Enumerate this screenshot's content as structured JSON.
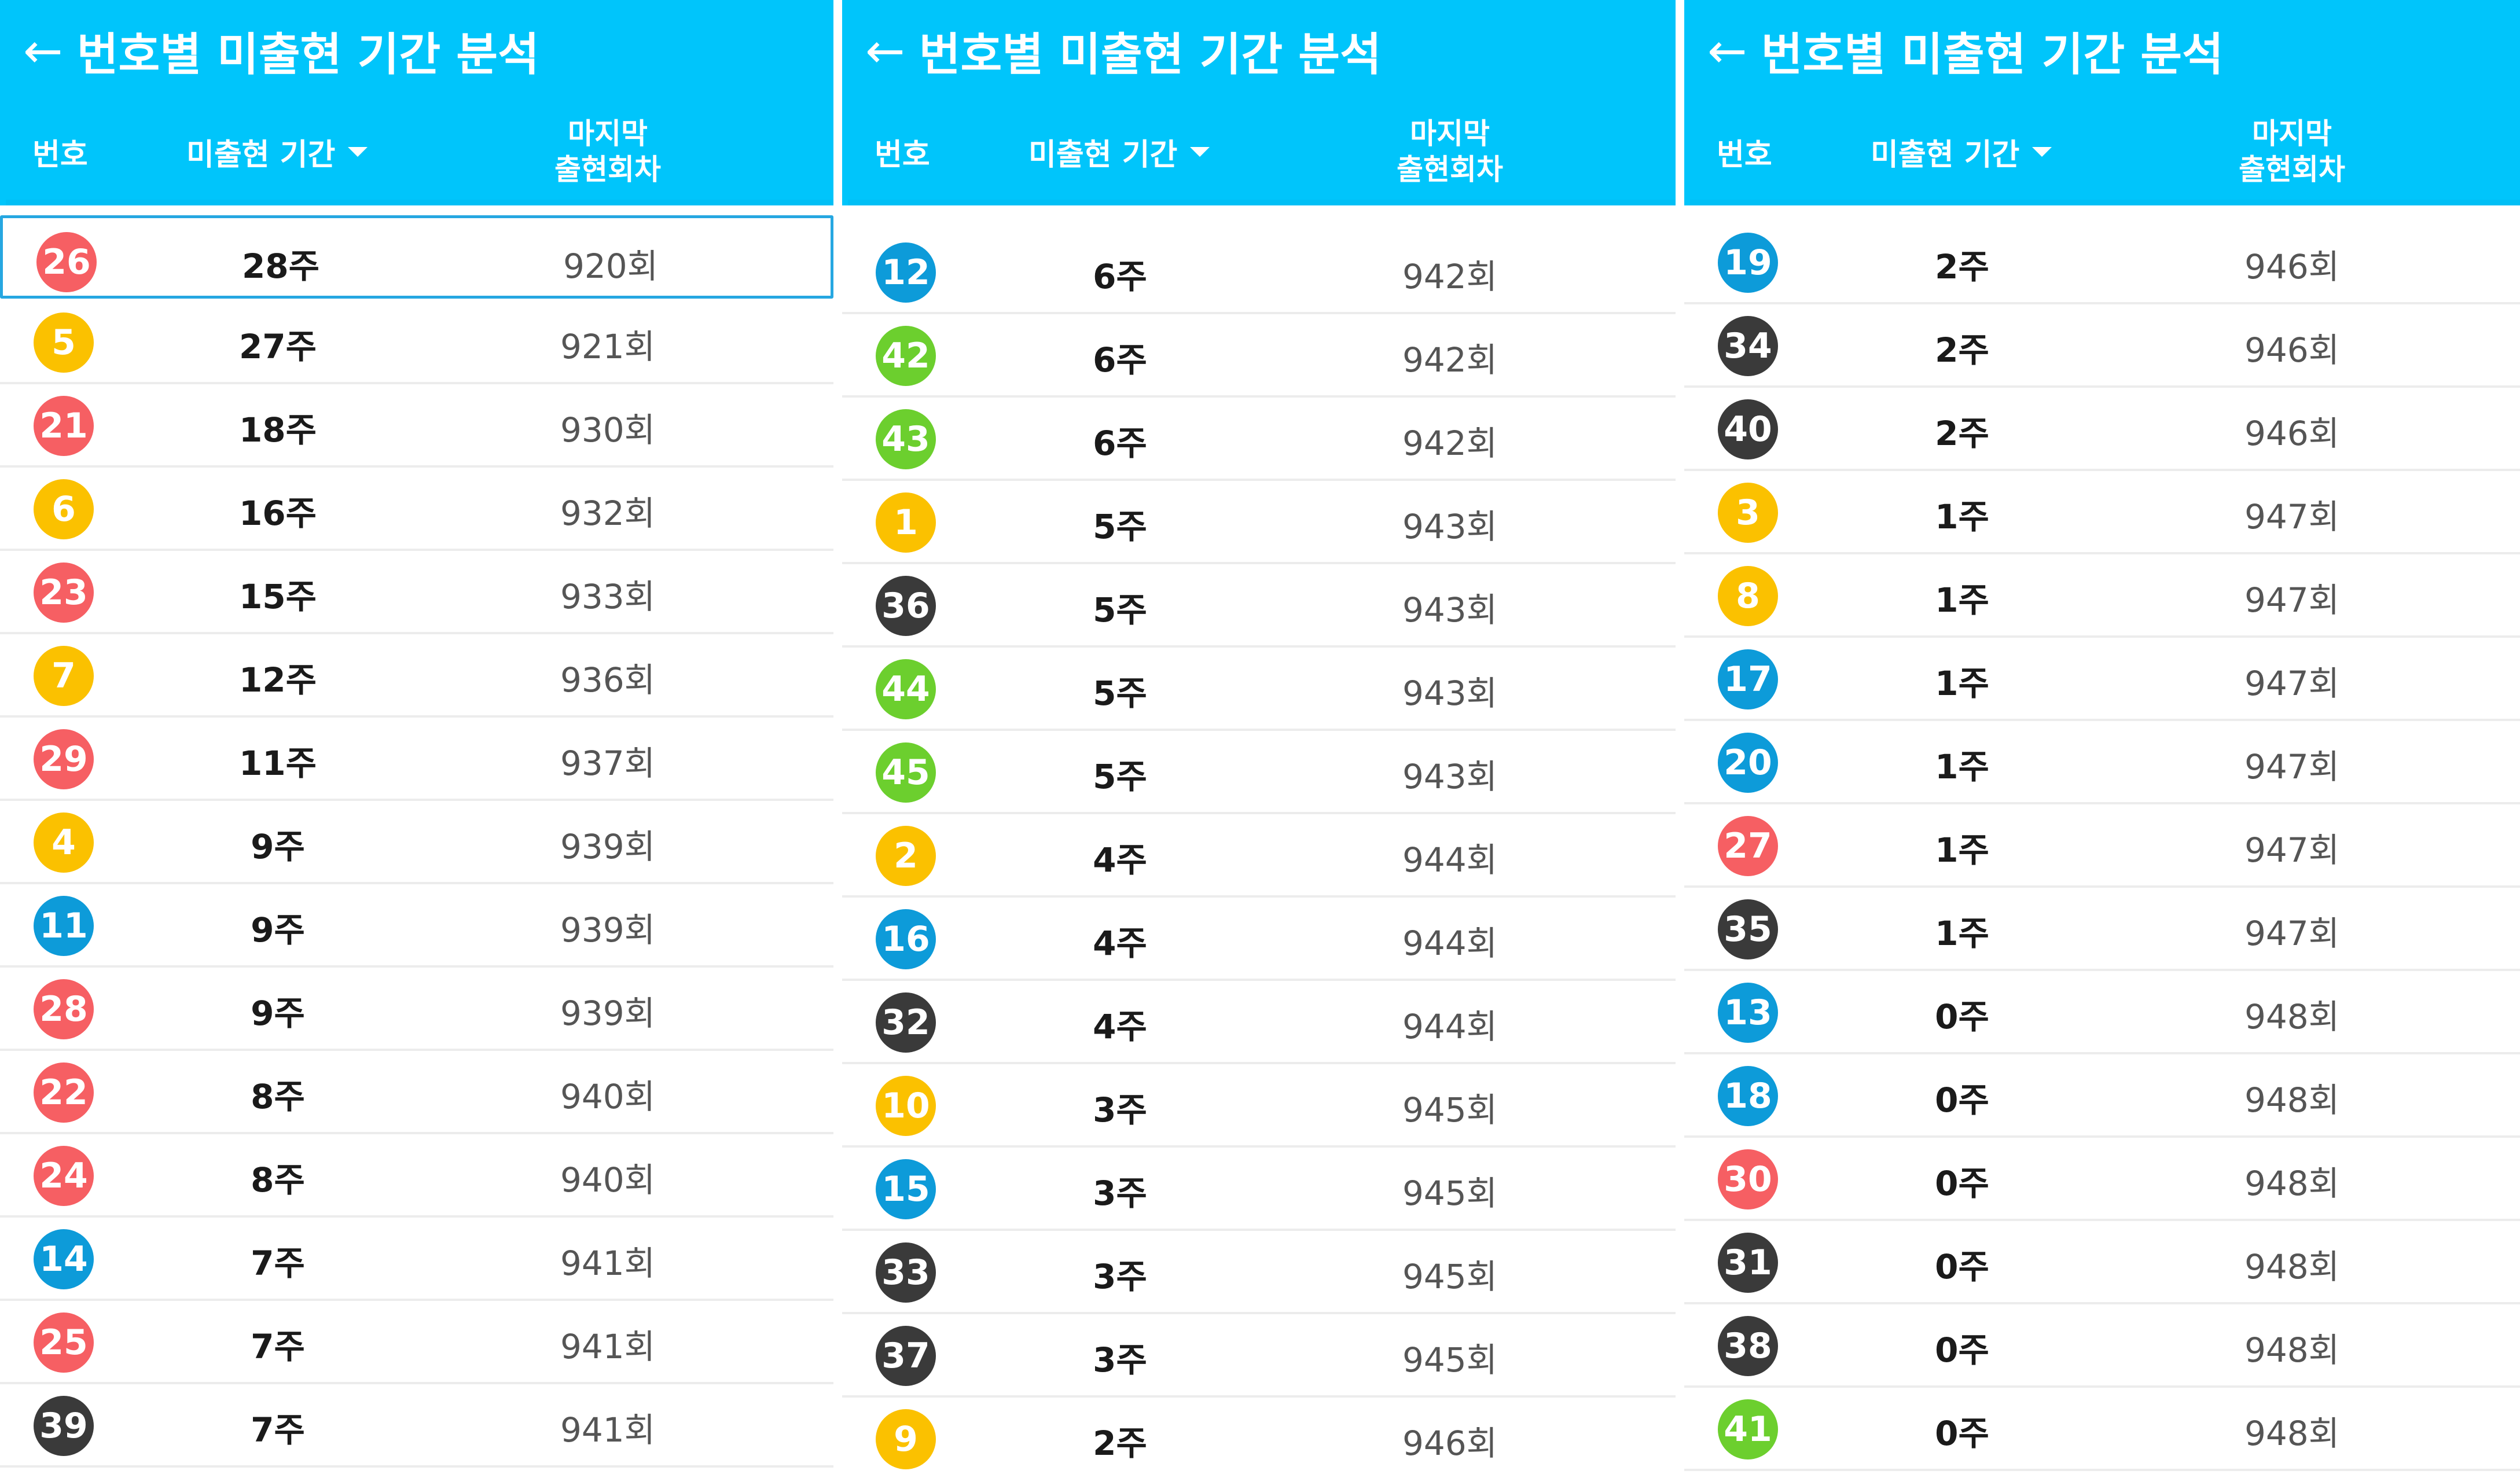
{
  "colors": {
    "header_bg": "#00c5fb",
    "ball_red": "#f65f63",
    "ball_yellow": "#fbc100",
    "ball_blue": "#0d9bd9",
    "ball_green": "#6ccf2e",
    "ball_dark": "#3a3a3a"
  },
  "panels": [
    {
      "title": "번호별 미출현 기간 분석",
      "col_number": "번호",
      "col_period": "미출현 기간",
      "col_last_line1": "마지막",
      "col_last_line2": "출현회차",
      "rows": [
        {
          "no": "26",
          "color": "#f65f63",
          "period": "28주",
          "last": "920회",
          "selected": true
        },
        {
          "no": "5",
          "color": "#fbc100",
          "period": "27주",
          "last": "921회"
        },
        {
          "no": "21",
          "color": "#f65f63",
          "period": "18주",
          "last": "930회"
        },
        {
          "no": "6",
          "color": "#fbc100",
          "period": "16주",
          "last": "932회"
        },
        {
          "no": "23",
          "color": "#f65f63",
          "period": "15주",
          "last": "933회"
        },
        {
          "no": "7",
          "color": "#fbc100",
          "period": "12주",
          "last": "936회"
        },
        {
          "no": "29",
          "color": "#f65f63",
          "period": "11주",
          "last": "937회"
        },
        {
          "no": "4",
          "color": "#fbc100",
          "period": "9주",
          "last": "939회"
        },
        {
          "no": "11",
          "color": "#0d9bd9",
          "period": "9주",
          "last": "939회"
        },
        {
          "no": "28",
          "color": "#f65f63",
          "period": "9주",
          "last": "939회"
        },
        {
          "no": "22",
          "color": "#f65f63",
          "period": "8주",
          "last": "940회"
        },
        {
          "no": "24",
          "color": "#f65f63",
          "period": "8주",
          "last": "940회"
        },
        {
          "no": "14",
          "color": "#0d9bd9",
          "period": "7주",
          "last": "941회"
        },
        {
          "no": "25",
          "color": "#f65f63",
          "period": "7주",
          "last": "941회"
        },
        {
          "no": "39",
          "color": "#3a3a3a",
          "period": "7주",
          "last": "941회"
        }
      ]
    },
    {
      "title": "번호별 미출현 기간 분석",
      "col_number": "번호",
      "col_period": "미출현 기간",
      "col_last_line1": "마지막",
      "col_last_line2": "출현회차",
      "rows": [
        {
          "no": "12",
          "color": "#0d9bd9",
          "period": "6주",
          "last": "942회"
        },
        {
          "no": "42",
          "color": "#6ccf2e",
          "period": "6주",
          "last": "942회"
        },
        {
          "no": "43",
          "color": "#6ccf2e",
          "period": "6주",
          "last": "942회"
        },
        {
          "no": "1",
          "color": "#fbc100",
          "period": "5주",
          "last": "943회"
        },
        {
          "no": "36",
          "color": "#3a3a3a",
          "period": "5주",
          "last": "943회"
        },
        {
          "no": "44",
          "color": "#6ccf2e",
          "period": "5주",
          "last": "943회"
        },
        {
          "no": "45",
          "color": "#6ccf2e",
          "period": "5주",
          "last": "943회"
        },
        {
          "no": "2",
          "color": "#fbc100",
          "period": "4주",
          "last": "944회"
        },
        {
          "no": "16",
          "color": "#0d9bd9",
          "period": "4주",
          "last": "944회"
        },
        {
          "no": "32",
          "color": "#3a3a3a",
          "period": "4주",
          "last": "944회"
        },
        {
          "no": "10",
          "color": "#fbc100",
          "period": "3주",
          "last": "945회"
        },
        {
          "no": "15",
          "color": "#0d9bd9",
          "period": "3주",
          "last": "945회"
        },
        {
          "no": "33",
          "color": "#3a3a3a",
          "period": "3주",
          "last": "945회"
        },
        {
          "no": "37",
          "color": "#3a3a3a",
          "period": "3주",
          "last": "945회"
        },
        {
          "no": "9",
          "color": "#fbc100",
          "period": "2주",
          "last": "946회"
        }
      ]
    },
    {
      "title": "번호별 미출현 기간 분석",
      "col_number": "번호",
      "col_period": "미출현 기간",
      "col_last_line1": "마지막",
      "col_last_line2": "출현회차",
      "rows": [
        {
          "no": "19",
          "color": "#0d9bd9",
          "period": "2주",
          "last": "946회"
        },
        {
          "no": "34",
          "color": "#3a3a3a",
          "period": "2주",
          "last": "946회"
        },
        {
          "no": "40",
          "color": "#3a3a3a",
          "period": "2주",
          "last": "946회"
        },
        {
          "no": "3",
          "color": "#fbc100",
          "period": "1주",
          "last": "947회"
        },
        {
          "no": "8",
          "color": "#fbc100",
          "period": "1주",
          "last": "947회"
        },
        {
          "no": "17",
          "color": "#0d9bd9",
          "period": "1주",
          "last": "947회"
        },
        {
          "no": "20",
          "color": "#0d9bd9",
          "period": "1주",
          "last": "947회"
        },
        {
          "no": "27",
          "color": "#f65f63",
          "period": "1주",
          "last": "947회"
        },
        {
          "no": "35",
          "color": "#3a3a3a",
          "period": "1주",
          "last": "947회"
        },
        {
          "no": "13",
          "color": "#0d9bd9",
          "period": "0주",
          "last": "948회"
        },
        {
          "no": "18",
          "color": "#0d9bd9",
          "period": "0주",
          "last": "948회"
        },
        {
          "no": "30",
          "color": "#f65f63",
          "period": "0주",
          "last": "948회"
        },
        {
          "no": "31",
          "color": "#3a3a3a",
          "period": "0주",
          "last": "948회"
        },
        {
          "no": "38",
          "color": "#3a3a3a",
          "period": "0주",
          "last": "948회"
        },
        {
          "no": "41",
          "color": "#6ccf2e",
          "period": "0주",
          "last": "948회"
        }
      ]
    }
  ]
}
